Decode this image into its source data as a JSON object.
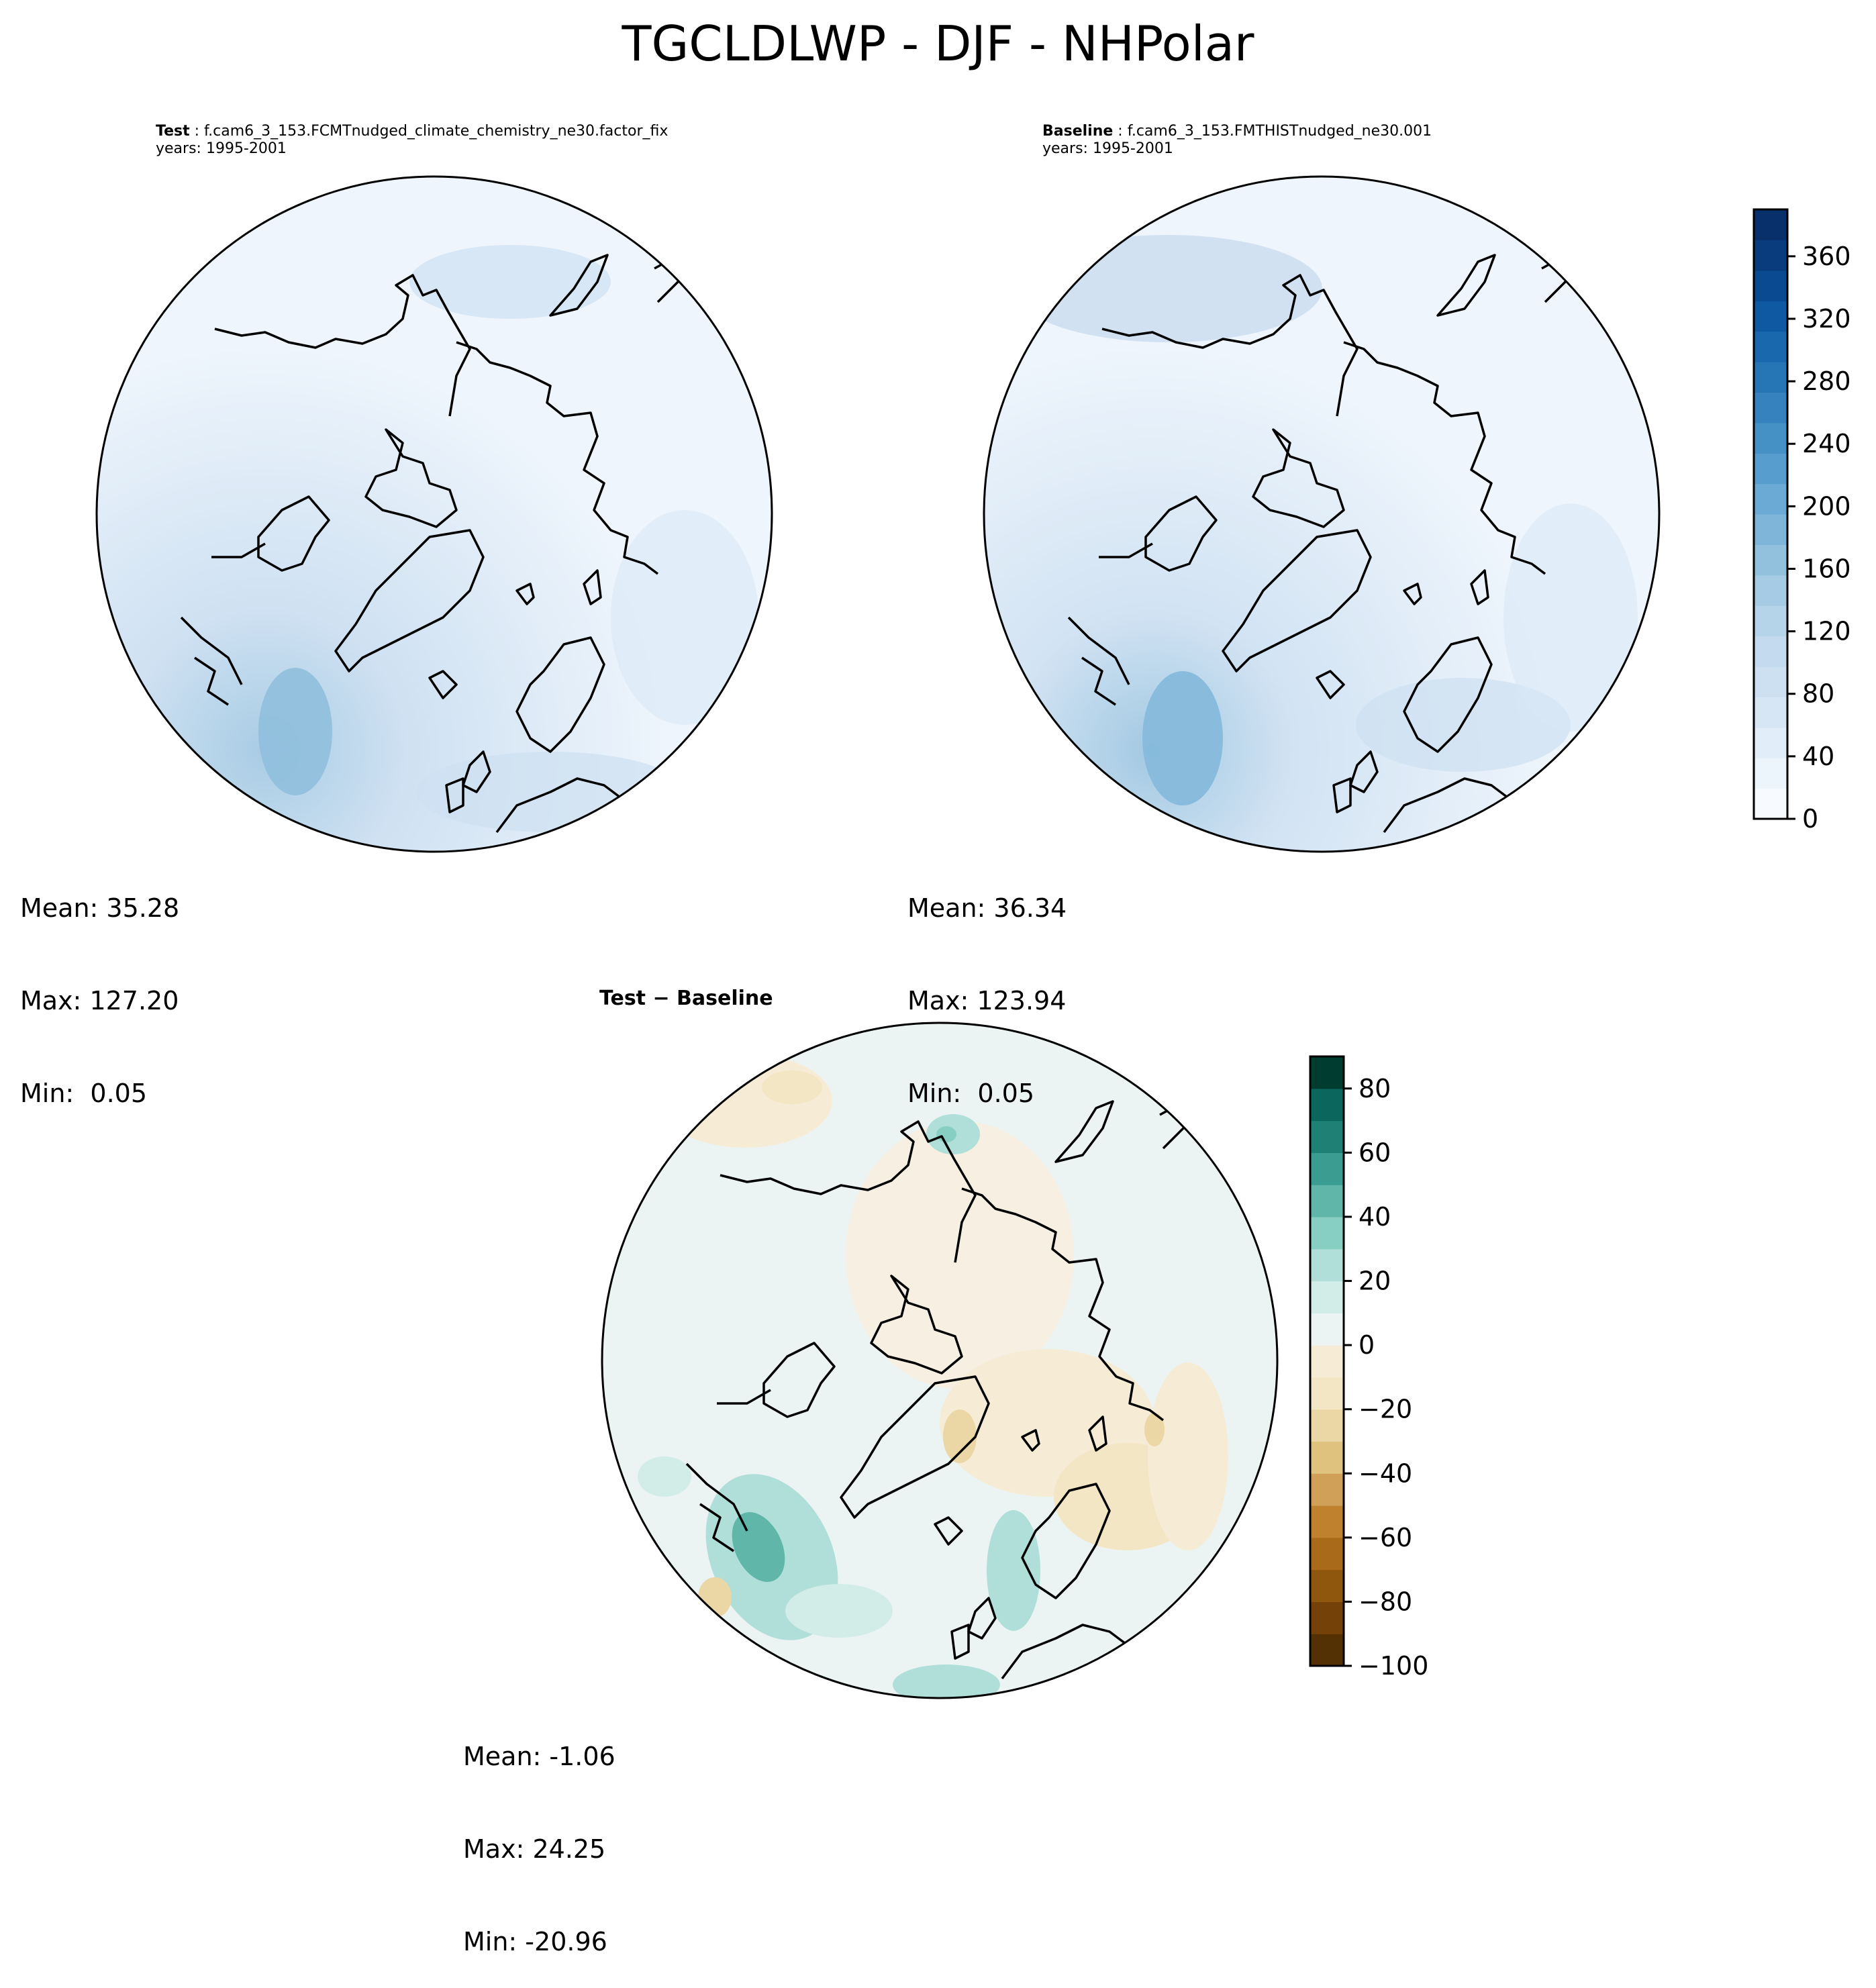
{
  "title": "TGCLDLWP - DJF - NHPolar",
  "panels": {
    "test": {
      "label": "Test",
      "case": "f.cam6_3_153.FCMTnudged_climate_chemistry_ne30.factor_fix",
      "years": "years: 1995-2001",
      "stats": {
        "mean": "Mean: 35.28",
        "max": "Max: 127.20",
        "min": "Min:  0.05"
      }
    },
    "baseline": {
      "label": "Baseline",
      "case": "f.cam6_3_153.FMTHISTnudged_ne30.001",
      "years": "years: 1995-2001",
      "stats": {
        "mean": "Mean: 36.34",
        "max": "Max: 123.94",
        "min": "Min:  0.05"
      }
    },
    "difference": {
      "label": "Test − Baseline",
      "stats": {
        "mean": "Mean: -1.06",
        "max": "Max: 24.25",
        "min": "Min: -20.96"
      }
    }
  },
  "colorbars": {
    "absolute": {
      "colormap": "Blues",
      "min": 0,
      "max": 390,
      "ticks": [
        0,
        40,
        80,
        120,
        160,
        200,
        240,
        280,
        320,
        360
      ],
      "tick_labels": [
        "0",
        "40",
        "80",
        "120",
        "160",
        "200",
        "240",
        "280",
        "320",
        "360"
      ],
      "levels": 20
    },
    "difference": {
      "colormap": "BrBG",
      "min": -100,
      "max": 90,
      "ticks": [
        -100,
        -80,
        -60,
        -40,
        -20,
        0,
        20,
        40,
        60,
        80
      ],
      "tick_labels": [
        "−100",
        "−80",
        "−60",
        "−40",
        "−20",
        "0",
        "20",
        "40",
        "60",
        "80"
      ],
      "levels": 19
    }
  },
  "colors": {
    "absolute_ramp": [
      "#f7fbff",
      "#ecf4fc",
      "#e1edf8",
      "#d6e6f4",
      "#cde0f1",
      "#c4daee",
      "#b6d4e9",
      "#a5cce4",
      "#92c1de",
      "#7fb5d9",
      "#6aaad4",
      "#579dcd",
      "#4590c5",
      "#3582be",
      "#2675b5",
      "#1967ad",
      "#0e59a2",
      "#0a4a91",
      "#083c7d",
      "#08306b"
    ],
    "difference_ramp": [
      "#543005",
      "#744208",
      "#8f560e",
      "#a96a1a",
      "#bf812d",
      "#d0a058",
      "#dfc27d",
      "#ebd7a5",
      "#f3e6c4",
      "#f6ecd6",
      "#ebf4f3",
      "#d2ece8",
      "#b0dfd9",
      "#88cfc3",
      "#5fb6a9",
      "#3b9c91",
      "#1f8176",
      "#0b675d",
      "#003c30"
    ],
    "coastline": "#000000"
  }
}
